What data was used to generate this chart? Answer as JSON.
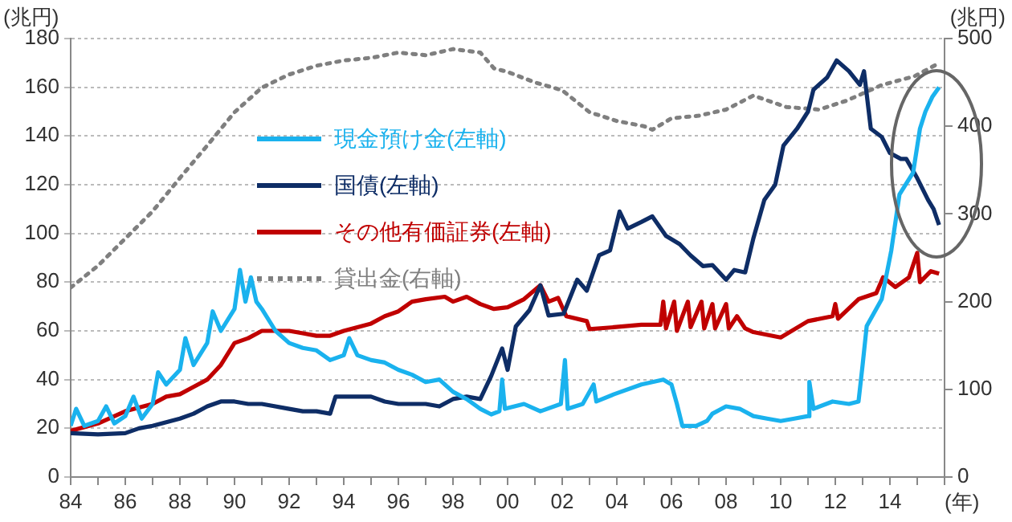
{
  "chart_data": {
    "type": "line",
    "ylabel": "(兆円)",
    "y2label": "(兆円)",
    "xlabel": "(年)",
    "xlim": [
      1984,
      2016
    ],
    "xticks": [
      {
        "value": 1984,
        "label": "84"
      },
      {
        "value": 1985,
        "label": null
      },
      {
        "value": 1986,
        "label": "86"
      },
      {
        "value": 1987,
        "label": null
      },
      {
        "value": 1988,
        "label": "88"
      },
      {
        "value": 1989,
        "label": null
      },
      {
        "value": 1990,
        "label": "90"
      },
      {
        "value": 1991,
        "label": null
      },
      {
        "value": 1992,
        "label": "92"
      },
      {
        "value": 1993,
        "label": null
      },
      {
        "value": 1994,
        "label": "94"
      },
      {
        "value": 1995,
        "label": null
      },
      {
        "value": 1996,
        "label": "96"
      },
      {
        "value": 1997,
        "label": null
      },
      {
        "value": 1998,
        "label": "98"
      },
      {
        "value": 1999,
        "label": null
      },
      {
        "value": 2000,
        "label": "00"
      },
      {
        "value": 2001,
        "label": null
      },
      {
        "value": 2002,
        "label": "02"
      },
      {
        "value": 2003,
        "label": null
      },
      {
        "value": 2004,
        "label": "04"
      },
      {
        "value": 2005,
        "label": null
      },
      {
        "value": 2006,
        "label": "06"
      },
      {
        "value": 2007,
        "label": null
      },
      {
        "value": 2008,
        "label": "08"
      },
      {
        "value": 2009,
        "label": null
      },
      {
        "value": 2010,
        "label": "10"
      },
      {
        "value": 2011,
        "label": null
      },
      {
        "value": 2012,
        "label": "12"
      },
      {
        "value": 2013,
        "label": null
      },
      {
        "value": 2014,
        "label": "14"
      },
      {
        "value": 2015,
        "label": null
      },
      {
        "value": 2016,
        "label": null
      }
    ],
    "ylim": [
      0,
      180
    ],
    "yticks": [
      0,
      20,
      40,
      60,
      80,
      100,
      120,
      140,
      160,
      180
    ],
    "y2lim": [
      0,
      500
    ],
    "y2ticks": [
      0,
      100,
      200,
      300,
      400,
      500
    ],
    "grid": "y",
    "legend": "top left",
    "marker": "none",
    "series": [
      {
        "name": "現金預け金(左軸)",
        "color": "#1ab2ee",
        "line_style": "solid",
        "x": [
          1984,
          1984.2,
          1984.5,
          1985,
          1985.3,
          1985.6,
          1986,
          1986.3,
          1986.6,
          1987,
          1987.2,
          1987.5,
          1988,
          1988.2,
          1988.5,
          1989,
          1989.2,
          1989.5,
          1990,
          1990.2,
          1990.4,
          1990.6,
          1990.8,
          1991,
          1991.5,
          1992,
          1992.5,
          1993,
          1993.5,
          1994,
          1994.2,
          1994.5,
          1995,
          1995.5,
          1996,
          1996.5,
          1997,
          1997.5,
          1998,
          1998.5,
          1999,
          1999.4,
          1999.7,
          1999.8,
          1999.9,
          2000.6,
          2001.2,
          2001.95,
          2002.1,
          2002.2,
          2002.75,
          2003.15,
          2003.25,
          2003.9,
          2004.9,
          2005.7,
          2006.0,
          2006.2,
          2006.4,
          2006.9,
          2007.3,
          2007.5,
          2008,
          2008.5,
          2009,
          2009.5,
          2010,
          2010.5,
          2011.0,
          2011.05,
          2011.2,
          2011.9,
          2012.5,
          2012.85,
          2013.0,
          2013.15,
          2013.7,
          2014.05,
          2014.35,
          2014.85,
          2015.1,
          2015.3,
          2015.55,
          2015.8
        ],
        "values": [
          21,
          28,
          21,
          23,
          29,
          22,
          25,
          33,
          24,
          30,
          43,
          38,
          44,
          57,
          46,
          55,
          68,
          60,
          69,
          85,
          72,
          82,
          72,
          69,
          60,
          55,
          53,
          52,
          48,
          50,
          57,
          50,
          48,
          47,
          44,
          42,
          39,
          40,
          35,
          32,
          28,
          25.7,
          27,
          40,
          28,
          30,
          27,
          30,
          48,
          28,
          30,
          38,
          31,
          34,
          38,
          40,
          38,
          30,
          21,
          21,
          23,
          26,
          29,
          28,
          25,
          24,
          23,
          24,
          25,
          39,
          28,
          31,
          30,
          31,
          46,
          62,
          73,
          93,
          116,
          125,
          143,
          150,
          156,
          160
        ]
      },
      {
        "name": "国債(左軸)",
        "color": "#0e2d66",
        "line_style": "solid",
        "x": [
          1984,
          1985,
          1986,
          1986.5,
          1987,
          1988,
          1988.5,
          1989,
          1989.5,
          1990,
          1990.5,
          1991,
          1992,
          1992.5,
          1993,
          1993.5,
          1993.7,
          1994,
          1995,
          1995.5,
          1996,
          1997,
          1997.5,
          1998,
          1998.5,
          1999,
          1999.4,
          1999.8,
          2000.0,
          2000.3,
          2000.8,
          2001.2,
          2001.5,
          2002.05,
          2002.55,
          2002.9,
          2003.35,
          2003.75,
          2004.1,
          2004.4,
          2004.9,
          2005.3,
          2005.8,
          2006.3,
          2006.7,
          2007.15,
          2007.5,
          2008,
          2008.3,
          2008.7,
          2009.0,
          2009.4,
          2009.8,
          2010.1,
          2010.6,
          2011.0,
          2011.2,
          2011.7,
          2012.05,
          2012.5,
          2012.9,
          2013.05,
          2013.3,
          2013.7,
          2014.0,
          2014.4,
          2014.6,
          2015.0,
          2015.4,
          2015.6,
          2015.8
        ],
        "values": [
          18,
          17.5,
          18,
          20,
          21,
          24,
          26,
          29,
          31,
          31,
          30,
          30,
          28,
          27,
          27,
          26,
          33,
          33,
          33,
          31,
          30,
          30,
          29,
          32,
          33,
          32,
          41.5,
          52.8,
          44,
          61.8,
          68.5,
          78.7,
          66.3,
          67,
          81,
          76.5,
          91,
          93,
          109,
          102,
          104.7,
          107,
          99,
          95.6,
          91,
          86.6,
          87,
          81,
          85,
          84,
          98,
          113.7,
          120,
          136,
          143,
          150,
          159,
          164,
          171,
          166.6,
          161,
          166.6,
          143,
          139.6,
          133,
          130.6,
          130.6,
          122.7,
          113.7,
          110,
          103.5
        ]
      },
      {
        "name": "その他有価証券(左軸)",
        "color": "#c00000",
        "line_style": "solid",
        "x": [
          1984,
          1985,
          1986,
          1987,
          1987.5,
          1988,
          1988.5,
          1989,
          1989.5,
          1990,
          1990.5,
          1991,
          1992,
          1992.5,
          1993,
          1993.5,
          1994,
          1995,
          1995.5,
          1996,
          1996.5,
          1997,
          1997.7,
          1998,
          1998.5,
          1999,
          1999.5,
          2000,
          2000.6,
          2001.2,
          2001.5,
          2001.85,
          2002.15,
          2002.9,
          2003.0,
          2003.9,
          2004.9,
          2005.6,
          2005.7,
          2005.8,
          2006.1,
          2006.2,
          2006.6,
          2006.7,
          2007.1,
          2007.2,
          2007.5,
          2007.6,
          2008.0,
          2008.1,
          2008.4,
          2008.7,
          2009,
          2010,
          2011,
          2011.9,
          2012.0,
          2012.1,
          2012.85,
          2013.5,
          2013.75,
          2014.2,
          2014.7,
          2015.0,
          2015.1,
          2015.5,
          2015.8
        ],
        "values": [
          19,
          22,
          27,
          30,
          33,
          34,
          37,
          40,
          46,
          55,
          57,
          60,
          60,
          59,
          58,
          58,
          60,
          63,
          66,
          68,
          72,
          73,
          74,
          72,
          74,
          71,
          69,
          69.7,
          73,
          78.7,
          72,
          73.5,
          66,
          64,
          60.7,
          61.5,
          62.5,
          62.5,
          72,
          61,
          72,
          60,
          72,
          61.5,
          72,
          61,
          71,
          61,
          71,
          61,
          66,
          61,
          59.5,
          57.3,
          64,
          66,
          71,
          65,
          73,
          75.5,
          82,
          78,
          82,
          92,
          80,
          84.5,
          83.5
        ]
      },
      {
        "name": "貸出金(右軸)",
        "color": "#7f7f7f",
        "line_style": "dotted",
        "axis": "y2",
        "x": [
          1984,
          1985,
          1986,
          1987,
          1988,
          1989,
          1990,
          1991,
          1992,
          1993,
          1994,
          1995,
          1996,
          1997,
          1998,
          1999,
          1999.5,
          2000,
          2001,
          2002,
          2003,
          2004,
          2005,
          2005.3,
          2006,
          2007,
          2008,
          2009,
          2010.2,
          2011.4,
          2012.4,
          2013.7,
          2014.9,
          2015.8
        ],
        "values": [
          216,
          241,
          272,
          303,
          341,
          378,
          416,
          444,
          459,
          469,
          475,
          478,
          484,
          481,
          488,
          484,
          466,
          462,
          450,
          441,
          416,
          406,
          400,
          396,
          409,
          412,
          419,
          435,
          422,
          419,
          429,
          447,
          457,
          472
        ]
      }
    ]
  }
}
